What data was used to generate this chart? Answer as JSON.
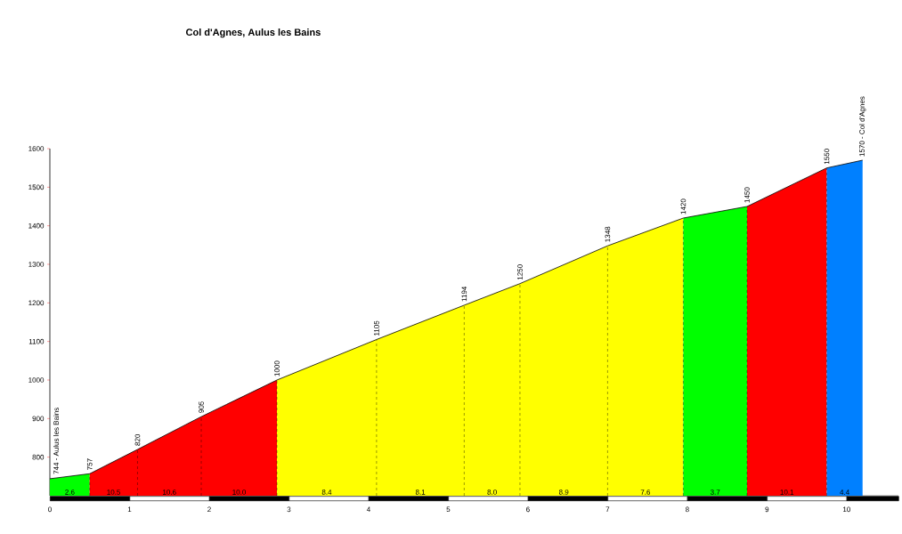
{
  "chart_data": {
    "type": "area",
    "title": "Col d'Agnes,      Aulus les Bains",
    "xlim": [
      0,
      10.65
    ],
    "ylim": [
      700,
      1600
    ],
    "xticks": [
      0,
      1,
      2,
      3,
      4,
      5,
      6,
      7,
      8,
      9,
      10
    ],
    "yticks": [
      800,
      900,
      1000,
      1100,
      1200,
      1300,
      1400,
      1500,
      1600
    ],
    "series": [
      {
        "color": "#00ff00",
        "x": [
          0,
          0.5
        ],
        "values": [
          744,
          757
        ]
      },
      {
        "color": "#ff0000",
        "x": [
          0.5,
          1.1,
          1.9,
          2.85
        ],
        "values": [
          757,
          820,
          905,
          1000
        ]
      },
      {
        "color": "#ffff00",
        "x": [
          2.85,
          4.1,
          5.2,
          5.9,
          7.0,
          7.95
        ],
        "values": [
          1000,
          1105,
          1194,
          1250,
          1348,
          1420
        ]
      },
      {
        "color": "#00ff00",
        "x": [
          7.95,
          8.75
        ],
        "values": [
          1420,
          1450
        ]
      },
      {
        "color": "#ff0000",
        "x": [
          8.75,
          9.75
        ],
        "values": [
          1450,
          1550
        ]
      },
      {
        "color": "#0080ff",
        "x": [
          9.75,
          10.2
        ],
        "values": [
          1550,
          1570
        ]
      },
      {
        "type": "line",
        "color": "#000000",
        "x": [
          0,
          0.5,
          1.1,
          1.9,
          2.85,
          4.1,
          5.2,
          5.9,
          7.0,
          7.95,
          8.75,
          9.75,
          10.2
        ],
        "values": [
          744,
          757,
          820,
          905,
          1000,
          1105,
          1194,
          1250,
          1348,
          1420,
          1450,
          1550,
          1570
        ],
        "value_labels": [
          "744 - Aulus les Bains",
          "757",
          "820",
          "905",
          "1000",
          "1105",
          "1194",
          "1250",
          "1348",
          "1420",
          "1450",
          "1550",
          "1570 - Col d'Agnes"
        ]
      }
    ],
    "annotations": [
      {
        "text": "2.6",
        "x": 0.25
      },
      {
        "text": "10.5",
        "x": 0.8
      },
      {
        "text": "10.6",
        "x": 1.5
      },
      {
        "text": "10.0",
        "x": 2.375
      },
      {
        "text": "8.4",
        "x": 3.475
      },
      {
        "text": "8.1",
        "x": 4.65
      },
      {
        "text": "8.0",
        "x": 5.55
      },
      {
        "text": "8.9",
        "x": 6.45
      },
      {
        "text": "7.6",
        "x": 7.475
      },
      {
        "text": "3.7",
        "x": 8.35
      },
      {
        "text": "10.1",
        "x": 9.25
      },
      {
        "text": "4.4",
        "x": 9.975
      }
    ]
  }
}
